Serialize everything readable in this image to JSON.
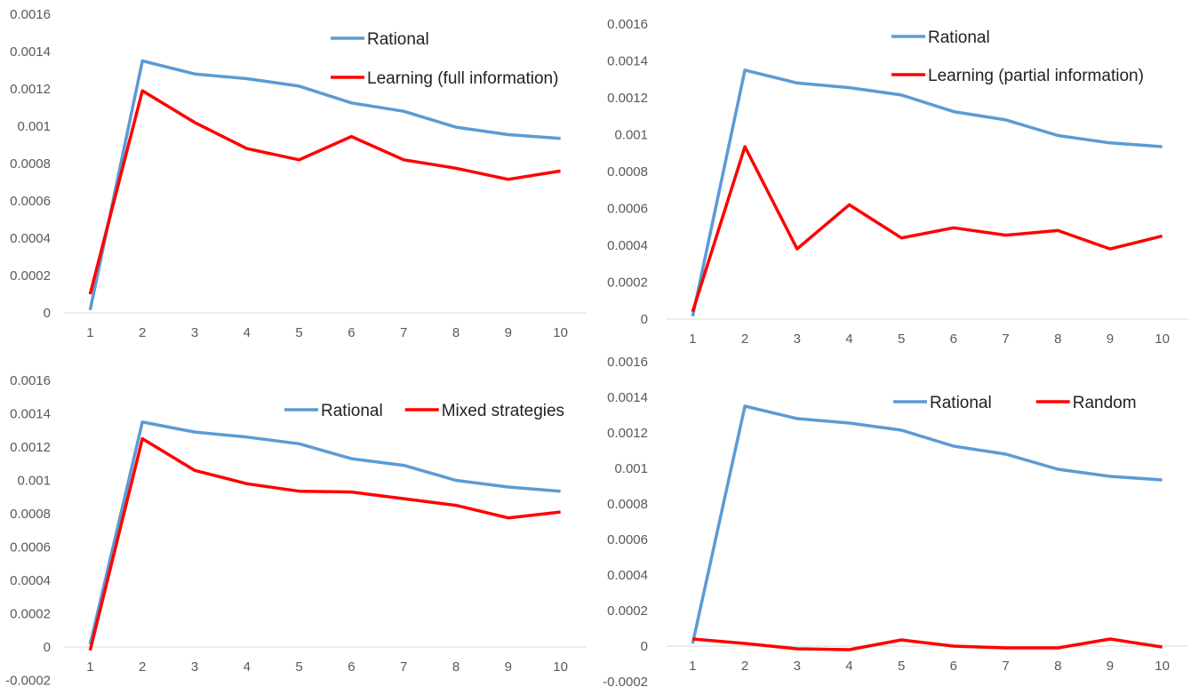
{
  "colors": {
    "rational": "#5B9BD5",
    "comparison": "#FF0000",
    "axis": "#D9D9D9",
    "tick_text": "#595959"
  },
  "chart_data": [
    {
      "type": "line",
      "categories": [
        "1",
        "2",
        "3",
        "4",
        "5",
        "6",
        "7",
        "8",
        "9",
        "10"
      ],
      "ylim": [
        0,
        0.0016
      ],
      "y_ticks": [
        "0",
        "0.0002",
        "0.0004",
        "0.0006",
        "0.0008",
        "0.001",
        "0.0012",
        "0.0014",
        "0.0016"
      ],
      "legend_placement": "top-right, stacked",
      "series": [
        {
          "name": "Rational",
          "values": [
            1.5e-05,
            0.00135,
            0.00128,
            0.001255,
            0.001215,
            0.001125,
            0.00108,
            0.000995,
            0.000955,
            0.000935
          ]
        },
        {
          "name": "Learning (full information)",
          "values": [
            0.0001,
            0.00119,
            0.00102,
            0.00088,
            0.00082,
            0.000945,
            0.00082,
            0.000775,
            0.000715,
            0.00076
          ]
        }
      ]
    },
    {
      "type": "line",
      "categories": [
        "1",
        "2",
        "3",
        "4",
        "5",
        "6",
        "7",
        "8",
        "9",
        "10"
      ],
      "ylim": [
        0,
        0.0016
      ],
      "y_ticks": [
        "0",
        "0.0002",
        "0.0004",
        "0.0006",
        "0.0008",
        "0.001",
        "0.0012",
        "0.0014",
        "0.0016"
      ],
      "legend_placement": "top-right, stacked",
      "series": [
        {
          "name": "Rational",
          "values": [
            1.5e-05,
            0.00135,
            0.00128,
            0.001255,
            0.001215,
            0.001125,
            0.00108,
            0.000995,
            0.000955,
            0.000935
          ]
        },
        {
          "name": "Learning (partial information)",
          "values": [
            4e-05,
            0.000935,
            0.00038,
            0.00062,
            0.00044,
            0.000495,
            0.000455,
            0.00048,
            0.00038,
            0.00045
          ]
        }
      ]
    },
    {
      "type": "line",
      "categories": [
        "1",
        "2",
        "3",
        "4",
        "5",
        "6",
        "7",
        "8",
        "9",
        "10"
      ],
      "ylim": [
        -0.0002,
        0.0016
      ],
      "y_ticks": [
        "-0.0002",
        "0",
        "0.0002",
        "0.0004",
        "0.0006",
        "0.0008",
        "0.001",
        "0.0012",
        "0.0014",
        "0.0016"
      ],
      "legend_placement": "top-right, side by side",
      "series": [
        {
          "name": "Rational",
          "values": [
            1.5e-05,
            0.00135,
            0.00129,
            0.00126,
            0.00122,
            0.00113,
            0.00109,
            0.001,
            0.00096,
            0.000935
          ]
        },
        {
          "name": "Mixed strategies",
          "values": [
            -2e-05,
            0.00125,
            0.00106,
            0.00098,
            0.000935,
            0.00093,
            0.00089,
            0.00085,
            0.000775,
            0.00081
          ]
        }
      ]
    },
    {
      "type": "line",
      "categories": [
        "1",
        "2",
        "3",
        "4",
        "5",
        "6",
        "7",
        "8",
        "9",
        "10"
      ],
      "ylim": [
        -0.0002,
        0.0016
      ],
      "y_ticks": [
        "-0.0002",
        "0",
        "0.0002",
        "0.0004",
        "0.0006",
        "0.0008",
        "0.001",
        "0.0012",
        "0.0014",
        "0.0016"
      ],
      "legend_placement": "top-right, side by side",
      "series": [
        {
          "name": "Rational",
          "values": [
            1.5e-05,
            0.00135,
            0.00128,
            0.001255,
            0.001215,
            0.001125,
            0.00108,
            0.000995,
            0.000955,
            0.000935
          ]
        },
        {
          "name": "Random",
          "values": [
            4e-05,
            1.5e-05,
            -1.5e-05,
            -2e-05,
            3.5e-05,
            0.0,
            -1e-05,
            -1e-05,
            4e-05,
            -5e-06
          ]
        }
      ]
    }
  ]
}
